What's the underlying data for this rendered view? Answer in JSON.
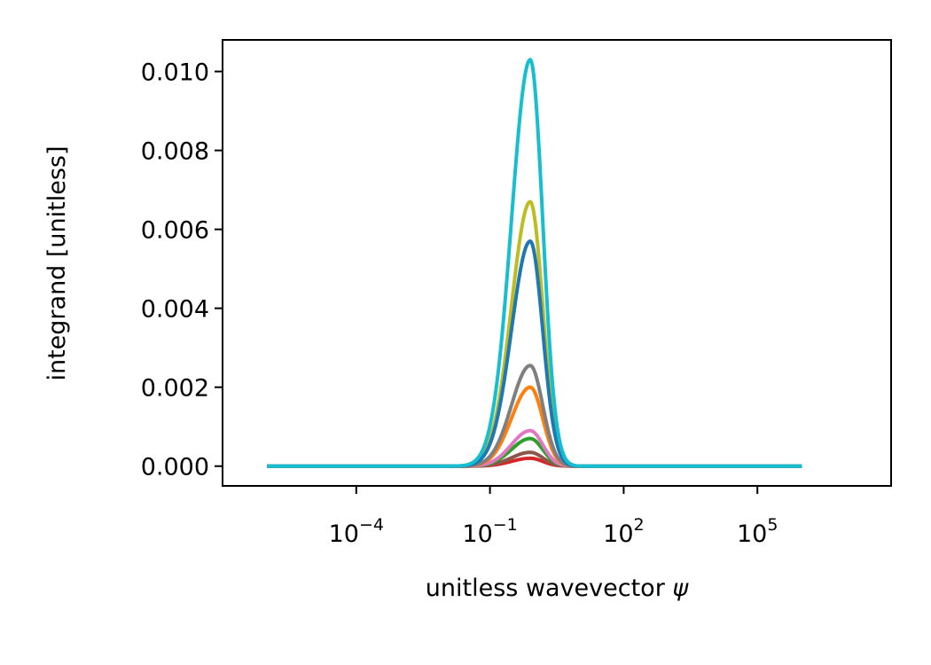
{
  "chart_data": {
    "type": "line",
    "title": "",
    "xlabel": "unitless wavevector ",
    "xlabel_symbol": "ψ",
    "ylabel": "integrand [unitless]",
    "xscale": "log",
    "xlim": [
      1e-07,
      100000000.0
    ],
    "ylim": [
      -0.0005,
      0.0108
    ],
    "grid": false,
    "legend": "none",
    "x_ticks": [
      {
        "value": 0.0001,
        "base": "10",
        "exp": "−4"
      },
      {
        "value": 0.1,
        "base": "10",
        "exp": "−1"
      },
      {
        "value": 100,
        "base": "10",
        "exp": "2"
      },
      {
        "value": 100000,
        "base": "10",
        "exp": "5"
      }
    ],
    "y_ticks": [
      {
        "value": 0.0,
        "label": "0.000"
      },
      {
        "value": 0.002,
        "label": "0.002"
      },
      {
        "value": 0.004,
        "label": "0.004"
      },
      {
        "value": 0.006,
        "label": "0.006"
      },
      {
        "value": 0.008,
        "label": "0.008"
      },
      {
        "value": 0.01,
        "label": "0.010"
      }
    ],
    "x_range": [
      1e-06,
      1000000.0
    ],
    "peak_x": 0.8,
    "series": [
      {
        "color": "#bcbd22",
        "peak": 0.0067
      },
      {
        "color": "#d62728",
        "peak": 0.0002
      },
      {
        "color": "#8c564b",
        "peak": 0.00035
      },
      {
        "color": "#2ca02c",
        "peak": 0.0007
      },
      {
        "color": "#e377c2",
        "peak": 0.0009
      },
      {
        "color": "#ff7f0e",
        "peak": 0.002
      },
      {
        "color": "#7f7f7f",
        "peak": 0.00255
      },
      {
        "color": "#1f77b4",
        "peak": 0.0057
      },
      {
        "color": "#17becf",
        "peak": 0.0103
      }
    ]
  }
}
